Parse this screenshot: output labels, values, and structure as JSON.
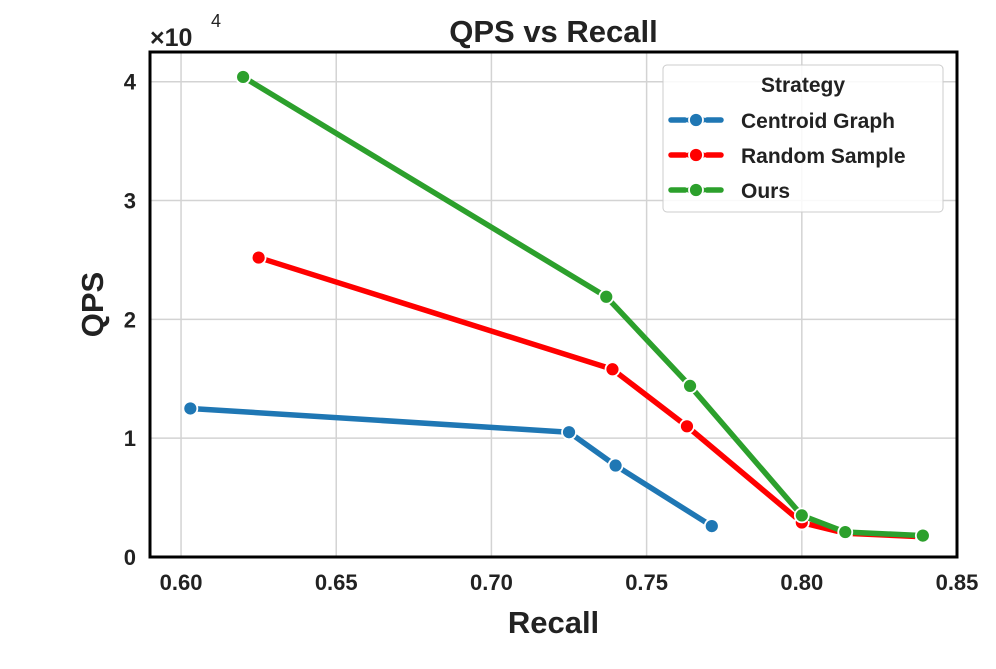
{
  "chart_data": {
    "type": "line",
    "title": "QPS vs Recall",
    "xlabel": "Recall",
    "ylabel": "QPS",
    "xlim": [
      0.59,
      0.85
    ],
    "ylim": [
      0,
      42500
    ],
    "xticks": [
      0.6,
      0.65,
      0.7,
      0.75,
      0.8,
      0.85
    ],
    "yticks": [
      0,
      10000,
      20000,
      30000,
      40000
    ],
    "ytick_labels": [
      "0",
      "1",
      "2",
      "3",
      "4"
    ],
    "y_multiplier_label": "×10",
    "y_multiplier_exponent": "4",
    "grid": true,
    "legend": {
      "title": "Strategy",
      "placement": "top-right"
    },
    "series": [
      {
        "name": "Centroid Graph",
        "color": "#1f77b4",
        "x": [
          0.603,
          0.725,
          0.74,
          0.771
        ],
        "y": [
          12500,
          10500,
          7700,
          2600
        ]
      },
      {
        "name": "Random Sample",
        "color": "#ff0000",
        "x": [
          0.625,
          0.739,
          0.763,
          0.8,
          0.814,
          0.839
        ],
        "y": [
          25200,
          15800,
          11000,
          2900,
          2000,
          1700
        ]
      },
      {
        "name": "Ours",
        "color": "#2ca02c",
        "x": [
          0.62,
          0.737,
          0.764,
          0.8,
          0.814,
          0.839
        ],
        "y": [
          40400,
          21900,
          14400,
          3500,
          2100,
          1800
        ]
      }
    ]
  }
}
